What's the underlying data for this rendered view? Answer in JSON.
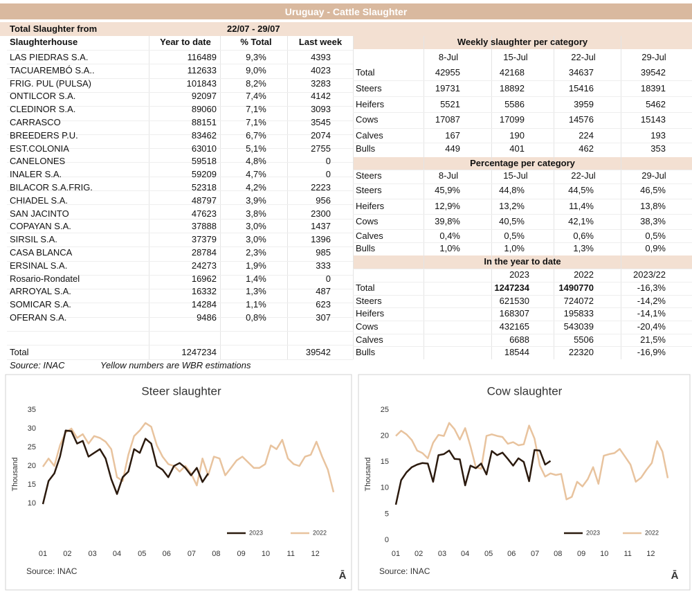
{
  "title": "Uruguay - Cattle Slaughter",
  "summary": {
    "label": "Total Slaughter from",
    "period": "22/07 - 29/07"
  },
  "slaughterhouses": {
    "columns": [
      "Slaughterhouse",
      "Year to date",
      "% Total",
      "Last week"
    ],
    "rows": [
      [
        "LAS PIEDRAS S.A.",
        116489,
        "9,3%",
        4393
      ],
      [
        "TACUAREMBÓ S.A..",
        112633,
        "9,0%",
        4023
      ],
      [
        "FRIG. PUL (PULSA)",
        101843,
        "8,2%",
        3283
      ],
      [
        "ONTILCOR S.A.",
        92097,
        "7,4%",
        4142
      ],
      [
        "CLEDINOR S.A.",
        89060,
        "7,1%",
        3093
      ],
      [
        "CARRASCO",
        88151,
        "7,1%",
        3545
      ],
      [
        "BREEDERS P.U.",
        83462,
        "6,7%",
        2074
      ],
      [
        "EST.COLONIA",
        63010,
        "5,1%",
        2755
      ],
      [
        "CANELONES",
        59518,
        "4,8%",
        0
      ],
      [
        "INALER S.A.",
        59209,
        "4,7%",
        0
      ],
      [
        "BILACOR S.A.FRIG.",
        52318,
        "4,2%",
        2223
      ],
      [
        "CHIADEL S.A.",
        48797,
        "3,9%",
        956
      ],
      [
        "SAN JACINTO",
        47623,
        "3,8%",
        2300
      ],
      [
        "COPAYAN S.A.",
        37888,
        "3,0%",
        1437
      ],
      [
        "SIRSIL S.A.",
        37379,
        "3,0%",
        1396
      ],
      [
        "CASA BLANCA",
        28784,
        "2,3%",
        985
      ],
      [
        "ERSINAL S.A.",
        24273,
        "1,9%",
        333
      ],
      [
        "Rosario-Rondatel",
        16962,
        "1,4%",
        0
      ],
      [
        "ARROYAL S.A.",
        16332,
        "1,3%",
        487
      ],
      [
        "SOMICAR S.A.",
        14284,
        "1,1%",
        623
      ],
      [
        "OFERAN S.A.",
        9486,
        "0,8%",
        307
      ]
    ],
    "total": {
      "label": "Total",
      "year_to_date": 1247234,
      "last_week": 39542
    }
  },
  "notes": [
    "Source: INAC",
    "Yellow numbers are WBR estimations"
  ],
  "weekly": {
    "title": "Weekly slaughter per category",
    "columns": [
      "8-Jul",
      "15-Jul",
      "22-Jul",
      "29-Jul"
    ],
    "rows": [
      {
        "label": "Total",
        "values": [
          42955,
          42168,
          34637,
          39542
        ]
      },
      {
        "label": "Steers",
        "values": [
          19731,
          18892,
          15416,
          18391
        ]
      },
      {
        "label": "Heifers",
        "values": [
          5521,
          5586,
          3959,
          5462
        ]
      },
      {
        "label": "Cows",
        "values": [
          17087,
          17099,
          14576,
          15143
        ]
      },
      {
        "label": "Calves",
        "values": [
          167,
          190,
          224,
          193
        ]
      },
      {
        "label": "Bulls",
        "values": [
          449,
          401,
          462,
          353
        ]
      }
    ]
  },
  "percentage": {
    "title": "Percentage per category",
    "columns": [
      "Steers",
      "8-Jul",
      "15-Jul",
      "22-Jul",
      "29-Jul"
    ],
    "rows": [
      {
        "label": "Steers",
        "values": [
          "45,9%",
          "44,8%",
          "44,5%",
          "46,5%"
        ]
      },
      {
        "label": "Heifers",
        "values": [
          "12,9%",
          "13,2%",
          "11,4%",
          "13,8%"
        ]
      },
      {
        "label": "Cows",
        "values": [
          "39,8%",
          "40,5%",
          "42,1%",
          "38,3%"
        ]
      },
      {
        "label": "Calves",
        "values": [
          "0,4%",
          "0,5%",
          "0,6%",
          "0,5%"
        ]
      },
      {
        "label": "Bulls",
        "values": [
          "1,0%",
          "1,0%",
          "1,3%",
          "0,9%"
        ]
      }
    ]
  },
  "year_to_date": {
    "title": "In the year to date",
    "columns": [
      "2023",
      "2022",
      "2023/22"
    ],
    "rows": [
      {
        "label": "Total",
        "values": [
          1247234,
          1490770,
          "-16,3%"
        ]
      },
      {
        "label": "Steers",
        "values": [
          621530,
          724072,
          "-14,2%"
        ]
      },
      {
        "label": "Heifers",
        "values": [
          168307,
          195833,
          "-14,1%"
        ]
      },
      {
        "label": "Cows",
        "values": [
          432165,
          543039,
          "-20,4%"
        ]
      },
      {
        "label": "Calves",
        "values": [
          6688,
          5506,
          "21,5%"
        ]
      },
      {
        "label": "Bulls",
        "values": [
          18544,
          22320,
          "-16,9%"
        ]
      }
    ]
  },
  "chart_data": [
    {
      "type": "line",
      "title": "Steer slaughter",
      "ylabel": "Thousand",
      "source": "Source: INAC",
      "icon": "Ā",
      "x": [
        1,
        2,
        3,
        4,
        5,
        6,
        7,
        8,
        9,
        10,
        11,
        12,
        13,
        14,
        15,
        16,
        17,
        18,
        19,
        20,
        21,
        22,
        23,
        24,
        25,
        26,
        27,
        28,
        29,
        30,
        31,
        32,
        33,
        34,
        35,
        36,
        37,
        38,
        39,
        40,
        41,
        42,
        43,
        44,
        45,
        46,
        47,
        48,
        49,
        50,
        51,
        52
      ],
      "xlim": [
        1,
        52
      ],
      "xticks": [
        {
          "value": 1,
          "label": "01"
        },
        {
          "value": 5.3,
          "label": "02"
        },
        {
          "value": 9.7,
          "label": "03"
        },
        {
          "value": 14,
          "label": "04"
        },
        {
          "value": 18.4,
          "label": "05"
        },
        {
          "value": 22.7,
          "label": "06"
        },
        {
          "value": 27.1,
          "label": "07"
        },
        {
          "value": 31.4,
          "label": "08"
        },
        {
          "value": 35.8,
          "label": "09"
        },
        {
          "value": 40.1,
          "label": "10"
        },
        {
          "value": 44.5,
          "label": "11"
        },
        {
          "value": 48.8,
          "label": "12"
        }
      ],
      "ylim": [
        0,
        35
      ],
      "yticks": [
        10,
        15,
        20,
        25,
        30,
        35
      ],
      "series": [
        {
          "name": "2023",
          "color": "#2b1a0e",
          "values": [
            9.8,
            16,
            18,
            22.5,
            29.5,
            29.3,
            26,
            26.7,
            22.5,
            23.5,
            24.5,
            22,
            16.5,
            12.5,
            17,
            18.5,
            24.5,
            23.5,
            27.3,
            26,
            20,
            19,
            17,
            20,
            20.8,
            19.5,
            17.5,
            19.5,
            15.7,
            18,
            null,
            null,
            null,
            null,
            null,
            null,
            null,
            null,
            null,
            null,
            null,
            null,
            null,
            null,
            null,
            null,
            null,
            null,
            null,
            null,
            null,
            null
          ]
        },
        {
          "name": "2022",
          "color": "#e8c39e",
          "values": [
            19.8,
            22,
            20,
            25.5,
            29,
            30,
            27.5,
            28.5,
            26,
            28,
            27.5,
            26.5,
            24.5,
            17,
            16,
            23,
            28,
            29.5,
            31.5,
            30.5,
            25.5,
            22.5,
            20.5,
            20,
            18.5,
            20,
            18,
            14.8,
            22,
            17.5,
            22.5,
            22,
            17.5,
            19.5,
            21.5,
            22.5,
            21,
            19.5,
            19.5,
            20.5,
            25.5,
            24.5,
            27,
            22,
            20.5,
            20,
            22.5,
            23,
            26.5,
            22.5,
            19,
            13
          ]
        }
      ]
    },
    {
      "type": "line",
      "title": "Cow slaughter",
      "ylabel": "Thousand",
      "source": "Source: INAC",
      "icon": "Ā",
      "x": [
        1,
        2,
        3,
        4,
        5,
        6,
        7,
        8,
        9,
        10,
        11,
        12,
        13,
        14,
        15,
        16,
        17,
        18,
        19,
        20,
        21,
        22,
        23,
        24,
        25,
        26,
        27,
        28,
        29,
        30,
        31,
        32,
        33,
        34,
        35,
        36,
        37,
        38,
        39,
        40,
        41,
        42,
        43,
        44,
        45,
        46,
        47,
        48,
        49,
        50,
        51,
        52
      ],
      "xlim": [
        1,
        52
      ],
      "xticks": [
        {
          "value": 1,
          "label": "01"
        },
        {
          "value": 5.3,
          "label": "02"
        },
        {
          "value": 9.7,
          "label": "03"
        },
        {
          "value": 14,
          "label": "04"
        },
        {
          "value": 18.4,
          "label": "05"
        },
        {
          "value": 22.7,
          "label": "06"
        },
        {
          "value": 27.1,
          "label": "07"
        },
        {
          "value": 31.4,
          "label": "08"
        },
        {
          "value": 35.8,
          "label": "09"
        },
        {
          "value": 40.1,
          "label": "10"
        },
        {
          "value": 44.5,
          "label": "11"
        },
        {
          "value": 48.8,
          "label": "12"
        }
      ],
      "ylim": [
        0,
        25
      ],
      "yticks": [
        0,
        5,
        10,
        15,
        20,
        25
      ],
      "series": [
        {
          "name": "2023",
          "color": "#2b1a0e",
          "values": [
            6.8,
            11.5,
            13,
            14,
            14.5,
            14.8,
            14.7,
            11.2,
            16.3,
            16.5,
            17.2,
            15.6,
            15.5,
            10.5,
            14.3,
            13.8,
            14.7,
            12.6,
            17.1,
            16.3,
            16.8,
            15.6,
            14.3,
            15.7,
            15,
            11.3,
            17.3,
            17.2,
            14.5,
            15.2,
            null,
            null,
            null,
            null,
            null,
            null,
            null,
            null,
            null,
            null,
            null,
            null,
            null,
            null,
            null,
            null,
            null,
            null,
            null,
            null,
            null,
            null
          ]
        },
        {
          "name": "2022",
          "color": "#e8c39e",
          "values": [
            20,
            21,
            20.3,
            19.2,
            17.2,
            16.7,
            15.7,
            18.7,
            20.2,
            20,
            22.5,
            21.3,
            19.3,
            21.5,
            18,
            14,
            13.7,
            20,
            20.3,
            20,
            19.8,
            18.5,
            18.8,
            18.2,
            18.4,
            22,
            19.5,
            14.3,
            12.2,
            12.8,
            12.5,
            12.7,
            7.8,
            8.3,
            11.2,
            10.3,
            11.7,
            14,
            10.8,
            16.2,
            16.5,
            16.7,
            17.5,
            16,
            14.5,
            11.2,
            12,
            13.5,
            14.8,
            19,
            17,
            11.9
          ]
        }
      ]
    }
  ]
}
